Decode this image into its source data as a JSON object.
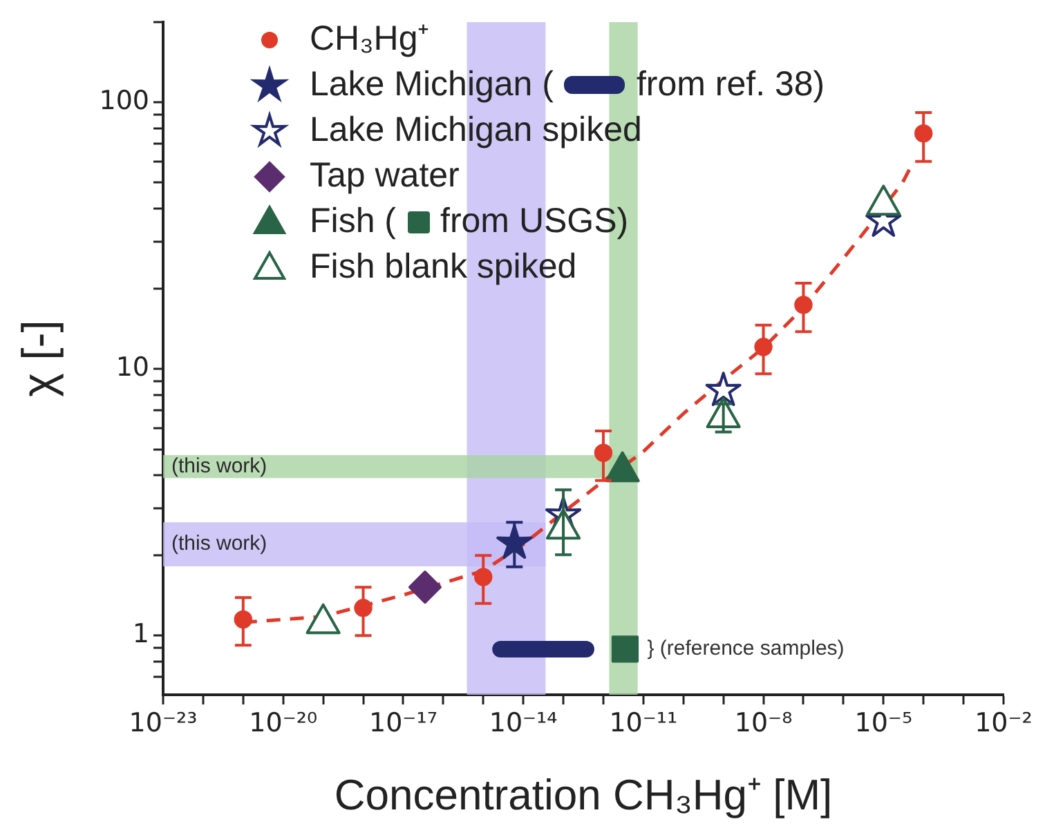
{
  "chart_data": {
    "type": "scatter",
    "xlabel": "Concentration CH₃Hg⁺ [M]",
    "ylabel": "χ [-]",
    "log": "xy",
    "grid": false,
    "legend": "top left",
    "xlim": [
      1e-23,
      0.01
    ],
    "ylim": [
      0.6,
      200
    ],
    "xticks": [
      {
        "value": 1e-23,
        "label": "10⁻²³"
      },
      {
        "value": 1e-22,
        "label": null
      },
      {
        "value": 1e-21,
        "label": null
      },
      {
        "value": 1e-20,
        "label": "10⁻²⁰"
      },
      {
        "value": 1e-19,
        "label": null
      },
      {
        "value": 1e-18,
        "label": null
      },
      {
        "value": 1e-17,
        "label": "10⁻¹⁷"
      },
      {
        "value": 1e-16,
        "label": null
      },
      {
        "value": 1e-15,
        "label": null
      },
      {
        "value": 1e-14,
        "label": "10⁻¹⁴"
      },
      {
        "value": 1e-13,
        "label": null
      },
      {
        "value": 1e-12,
        "label": null
      },
      {
        "value": 1e-11,
        "label": "10⁻¹¹"
      },
      {
        "value": 1e-10,
        "label": null
      },
      {
        "value": 1e-09,
        "label": null
      },
      {
        "value": 1e-08,
        "label": "10⁻⁸"
      },
      {
        "value": 1e-07,
        "label": null
      },
      {
        "value": 1e-06,
        "label": null
      },
      {
        "value": 1e-05,
        "label": "10⁻⁵"
      },
      {
        "value": 0.0001,
        "label": null
      },
      {
        "value": 0.001,
        "label": null
      },
      {
        "value": 0.01,
        "label": "10⁻²"
      }
    ],
    "yticks": [
      {
        "value": 0.7,
        "label": null
      },
      {
        "value": 0.8,
        "label": null
      },
      {
        "value": 0.9,
        "label": null
      },
      1,
      {
        "value": 2,
        "label": null
      },
      {
        "value": 3,
        "label": null
      },
      {
        "value": 4,
        "label": null
      },
      {
        "value": 5,
        "label": null
      },
      {
        "value": 6,
        "label": null
      },
      {
        "value": 7,
        "label": null
      },
      {
        "value": 8,
        "label": null
      },
      {
        "value": 9,
        "label": null
      },
      10,
      {
        "value": 20,
        "label": null
      },
      {
        "value": 30,
        "label": null
      },
      {
        "value": 40,
        "label": null
      },
      {
        "value": 50,
        "label": null
      },
      {
        "value": 60,
        "label": null
      },
      {
        "value": 70,
        "label": null
      },
      {
        "value": 80,
        "label": null
      },
      {
        "value": 90,
        "label": null
      },
      100,
      {
        "value": 200,
        "label": null
      }
    ],
    "series": [
      {
        "name": "CH₃Hg⁺",
        "color": "#e03a2a",
        "marker": "circle",
        "x": [
          1e-21,
          1e-18,
          1e-15,
          1e-12,
          1e-08,
          1e-07,
          0.0001
        ],
        "values": [
          1.15,
          1.27,
          1.66,
          4.85,
          12.1,
          17.4,
          76.5
        ],
        "errors": [
          [
            0.92,
            1.39
          ],
          [
            1.0,
            1.52
          ],
          [
            1.32,
            2.0
          ],
          [
            3.82,
            5.86
          ],
          [
            9.6,
            14.6
          ],
          [
            13.8,
            21
          ],
          [
            60,
            91.6
          ]
        ]
      },
      {
        "name": "Lake Michigan (",
        "color": "#232a6e",
        "marker": "star",
        "x": [
          6e-15
        ],
        "values": [
          2.22
        ],
        "errors": [
          [
            1.81,
            2.66
          ]
        ]
      },
      {
        "name": "from ref. 38)",
        "type": "line",
        "color": "#232a6e",
        "marker": "none",
        "x": [
          2.7e-15,
          3.7e-13
        ],
        "values": [
          0.89,
          0.89
        ]
      },
      {
        "name": "Lake Michigan spiked",
        "color": "#232a6e",
        "marker": "star-open",
        "x": [
          1e-13,
          1e-09,
          1e-05
        ],
        "values": [
          2.83,
          8.3,
          35.8
        ]
      },
      {
        "name": "Tap water",
        "color": "#5c2d6e",
        "marker": "diamond",
        "x": [
          3.5e-17
        ],
        "values": [
          1.52
        ]
      },
      {
        "name": "Fish (",
        "color": "#2a6446",
        "marker": "triangle",
        "x": [
          3e-12
        ],
        "values": [
          4.2
        ]
      },
      {
        "name": "from USGS)",
        "color": "#2a6446",
        "marker": "square",
        "x": [
          3.5e-12
        ],
        "values": [
          0.89
        ]
      },
      {
        "name": "Fish blank spiked",
        "color": "#2a6446",
        "marker": "triangle-open",
        "x": [
          1e-19,
          1e-13,
          1e-09,
          1e-05
        ],
        "values": [
          1.13,
          2.56,
          6.7,
          42
        ],
        "errors": [
          null,
          [
            2.01,
            3.52
          ],
          [
            5.8,
            7.4
          ],
          null
        ]
      },
      {
        "type": "line",
        "color": "#e03a2a",
        "line_style": "dashed",
        "marker": "none",
        "x": [
          1e-21,
          1e-19,
          1e-17,
          1e-15,
          1e-14,
          1e-13,
          1e-12,
          1e-11,
          1e-10,
          1e-09,
          1e-08,
          1e-07,
          1e-06,
          3e-06,
          3e-05,
          5e-05
        ],
        "values": [
          1.12,
          1.18,
          1.42,
          1.75,
          2.2,
          2.9,
          3.8,
          4.9,
          6.8,
          9.1,
          12,
          17,
          26,
          32,
          50,
          58
        ]
      }
    ],
    "bands": [
      {
        "axis": "x",
        "from": 3.9e-16,
        "to": 3.6e-14,
        "color": "#c4bcf6"
      },
      {
        "axis": "y",
        "from": 1.82,
        "to": 2.66,
        "label": "(this work)",
        "color": "#c4bcf6"
      },
      {
        "axis": "x",
        "from": 1.4e-12,
        "to": 7.2e-12,
        "color": "#a9d3a3"
      },
      {
        "axis": "y",
        "from": 3.9,
        "to": 4.75,
        "label": "(this work)",
        "color": "#a9d3a3"
      }
    ],
    "annotations": [
      "} (reference samples)"
    ]
  }
}
